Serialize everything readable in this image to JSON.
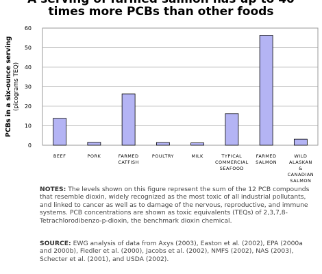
{
  "title_line1": "A serving of farmed salmon has up to 40",
  "title_line2": "times more PCBs than other foods",
  "notes_label": "NOTES:",
  "notes_text": "The levels shown on this figure represent the sum of the 12 PCB compounds that resemble dioxin, widely recognized as the most toxic of all industrial pollutants, and linked to cancer as well as to damage of the nervous, reproductive, and immune systems. PCB concentrations are shown as toxic equivalents (TEQs) of 2,3,7,8-Tetrachlorodibenzo-p-dioxin, the benchmark dioxin chemical.",
  "source_label": "SOURCE:",
  "source_text": "EWG analysis of data from Axys (2003), Easton et al. (2002), EPA (2000a and 2000b), Fiedler et al. (2000), Jacobs et al. (2002), NMFS (2002), NAS (2003), Schecter et al. (2001), and USDA (2002).",
  "chart_data": {
    "type": "bar",
    "title": "A serving of farmed salmon has up to 40 times more PCBs than other foods",
    "ylabel": "PCBs in a six-ounce serving",
    "ylabel_sub": "(picograms TEQ)",
    "ylim": [
      0,
      60
    ],
    "yticks": [
      0,
      10,
      20,
      30,
      40,
      50,
      60
    ],
    "grid": true,
    "categories": [
      [
        "BEEF"
      ],
      [
        "PORK"
      ],
      [
        "FARMED",
        "CATFISH"
      ],
      [
        "POULTRY"
      ],
      [
        "MILK"
      ],
      [
        "TYPICAL",
        "COMMERCIAL",
        "SEAFOOD"
      ],
      [
        "FARMED",
        "SALMON"
      ],
      [
        "WILD",
        "ALASKAN",
        "&",
        "CANADIAN",
        "SALMON"
      ]
    ],
    "values": [
      13.8,
      1.5,
      26.3,
      1.4,
      1.2,
      16.2,
      56.3,
      3.1
    ],
    "bar_color": "#b4b4f4",
    "bar_stroke": "#000000"
  }
}
